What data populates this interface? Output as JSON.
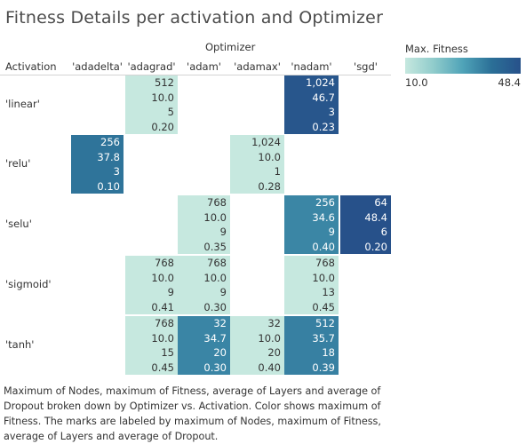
{
  "title": "Fitness Details per activation and Optimizer",
  "column_axis_label": "Optimizer",
  "row_axis_label": "Activation",
  "legend": {
    "title": "Max. Fitness",
    "min_label": "10.0",
    "max_label": "48.4"
  },
  "caption": "Maximum of  Nodes, maximum of  Fitness, average of Layers and average of Dropout broken down by Optimizer vs. Activation.  Color shows maximum of Fitness.  The marks are labeled by maximum of  Nodes, maximum of  Fitness, average of Layers and average of Dropout.",
  "chart_data": {
    "type": "heatmap",
    "title": "Fitness Details per activation and Optimizer",
    "x_label": "Optimizer",
    "y_label": "Activation",
    "color_measure": "Max. Fitness",
    "color_range": [
      10.0,
      48.4
    ],
    "color_scale": [
      "#c6e8df",
      "#27518a"
    ],
    "columns": [
      "'adadelta'",
      "'adagrad'",
      "'adam'",
      "'adamax'",
      "'nadam'",
      "'sgd'"
    ],
    "rows": [
      "'linear'",
      "'relu'",
      "'selu'",
      "'sigmoid'",
      "'tanh'"
    ],
    "measures": [
      "Max Nodes",
      "Max Fitness",
      "Avg Layers",
      "Avg Dropout"
    ],
    "cells": [
      {
        "row": "'linear'",
        "col": "'adagrad'",
        "labels": [
          "512",
          "10.0",
          "5",
          "0.20"
        ],
        "fitness": 10.0
      },
      {
        "row": "'linear'",
        "col": "'nadam'",
        "labels": [
          "1,024",
          "46.7",
          "3",
          "0.23"
        ],
        "fitness": 46.7
      },
      {
        "row": "'relu'",
        "col": "'adadelta'",
        "labels": [
          "256",
          "37.8",
          "3",
          "0.10"
        ],
        "fitness": 37.8
      },
      {
        "row": "'relu'",
        "col": "'adamax'",
        "labels": [
          "1,024",
          "10.0",
          "1",
          "0.28"
        ],
        "fitness": 10.0
      },
      {
        "row": "'selu'",
        "col": "'adam'",
        "labels": [
          "768",
          "10.0",
          "9",
          "0.35"
        ],
        "fitness": 10.0
      },
      {
        "row": "'selu'",
        "col": "'nadam'",
        "labels": [
          "256",
          "34.6",
          "9",
          "0.40"
        ],
        "fitness": 34.6
      },
      {
        "row": "'selu'",
        "col": "'sgd'",
        "labels": [
          "64",
          "48.4",
          "6",
          "0.20"
        ],
        "fitness": 48.4
      },
      {
        "row": "'sigmoid'",
        "col": "'adagrad'",
        "labels": [
          "768",
          "10.0",
          "9",
          "0.41"
        ],
        "fitness": 10.0
      },
      {
        "row": "'sigmoid'",
        "col": "'adam'",
        "labels": [
          "768",
          "10.0",
          "9",
          "0.30"
        ],
        "fitness": 10.0
      },
      {
        "row": "'sigmoid'",
        "col": "'nadam'",
        "labels": [
          "768",
          "10.0",
          "13",
          "0.45"
        ],
        "fitness": 10.0
      },
      {
        "row": "'tanh'",
        "col": "'adagrad'",
        "labels": [
          "768",
          "10.0",
          "15",
          "0.45"
        ],
        "fitness": 10.0
      },
      {
        "row": "'tanh'",
        "col": "'adam'",
        "labels": [
          "32",
          "34.7",
          "20",
          "0.30"
        ],
        "fitness": 34.7
      },
      {
        "row": "'tanh'",
        "col": "'adamax'",
        "labels": [
          "32",
          "10.0",
          "20",
          "0.40"
        ],
        "fitness": 10.0
      },
      {
        "row": "'tanh'",
        "col": "'nadam'",
        "labels": [
          "512",
          "35.7",
          "18",
          "0.39"
        ],
        "fitness": 35.7
      }
    ]
  }
}
